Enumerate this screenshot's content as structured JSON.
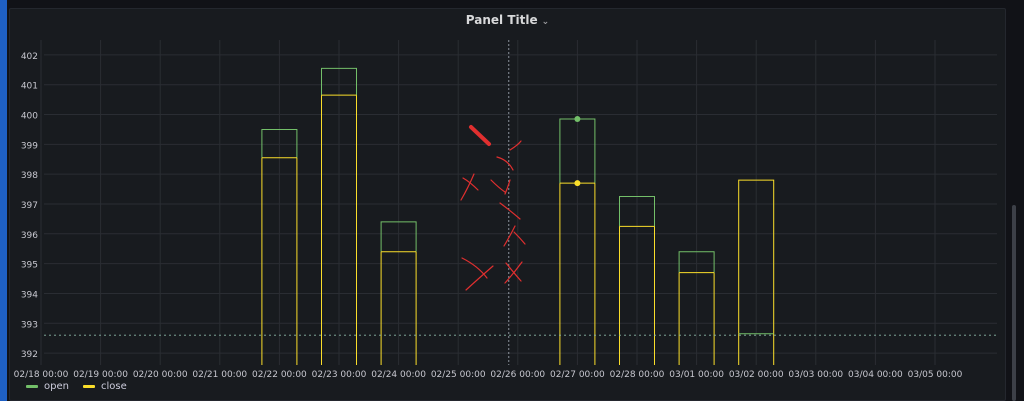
{
  "panel": {
    "title": "Panel Title",
    "chevron": "chevron-down-icon"
  },
  "legend": [
    {
      "name": "open",
      "color": "#73bf69"
    },
    {
      "name": "close",
      "color": "#fade2a"
    }
  ],
  "colors": {
    "open": "#73bf69",
    "close": "#fade2a",
    "grid": "#2a2d33",
    "tick": "#c7c7cf",
    "annotation": "#e02f2f"
  },
  "chart_data": {
    "type": "bar",
    "title": "Panel Title",
    "categories": [
      "02/18 00:00",
      "02/19 00:00",
      "02/20 00:00",
      "02/21 00:00",
      "02/22 00:00",
      "02/23 00:00",
      "02/24 00:00",
      "02/25 00:00",
      "02/26 00:00",
      "02/27 00:00",
      "02/28 00:00",
      "03/01 00:00",
      "03/02 00:00",
      "03/03 00:00",
      "03/04 00:00",
      "03/05 00:00"
    ],
    "series": [
      {
        "name": "open",
        "values": [
          null,
          null,
          null,
          null,
          399.5,
          401.55,
          396.4,
          null,
          null,
          399.85,
          397.25,
          395.4,
          392.65,
          null,
          null,
          null
        ]
      },
      {
        "name": "close",
        "values": [
          null,
          null,
          null,
          null,
          398.55,
          400.65,
          395.4,
          null,
          null,
          397.7,
          396.25,
          394.7,
          397.8,
          null,
          null,
          null
        ]
      }
    ],
    "yticks": [
      392,
      393,
      394,
      395,
      396,
      397,
      398,
      399,
      400,
      401,
      402
    ],
    "ylim": [
      391.6,
      402.5
    ],
    "threshold": 392.6,
    "crosshair_index": 8,
    "grid": true,
    "legend_position": "bottom-left"
  }
}
